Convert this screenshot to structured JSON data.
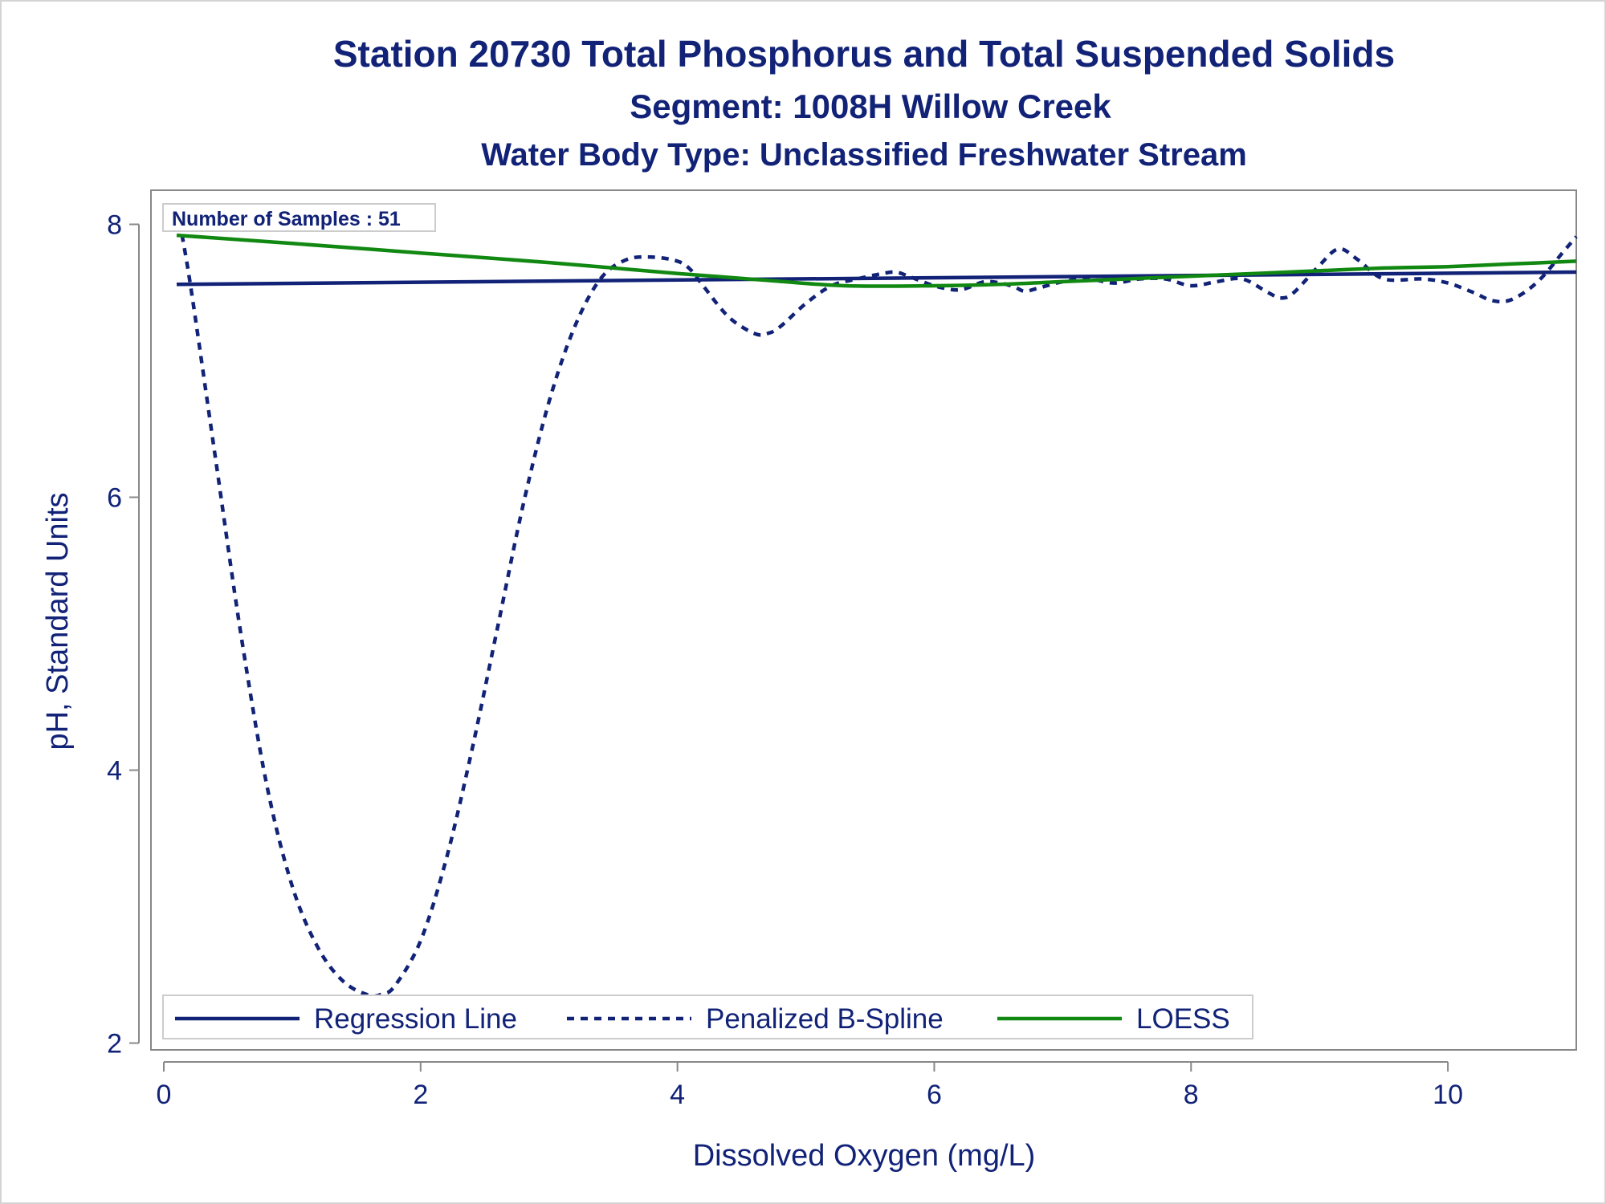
{
  "chart_data": {
    "type": "line",
    "title": "Station 20730  Total Phosphorus and Total Suspended Solids",
    "subtitle": "Segment: 1008H  Willow Creek",
    "subtitle2": "Water Body Type: Unclassified Freshwater Stream",
    "xlabel": "Dissolved Oxygen (mg/L)",
    "ylabel": "pH, Standard Units",
    "xlim": [
      -0.1,
      11.0
    ],
    "ylim": [
      1.95,
      8.25
    ],
    "xticks": [
      "0",
      "2",
      "4",
      "6",
      "8",
      "10"
    ],
    "yticks": [
      "2",
      "4",
      "6",
      "8"
    ],
    "grid": false,
    "legend_position": "bottom-inside",
    "inset_text": "Number of Samples : 51",
    "colors": {
      "navy": "#112277",
      "green": "#118811",
      "frame": "#888888"
    },
    "series": [
      {
        "name": "Regression Line",
        "style": "solid",
        "color": "#112277",
        "x": [
          0.1,
          11.0
        ],
        "y": [
          7.56,
          7.65
        ]
      },
      {
        "name": "Penalized B-Spline",
        "style": "dashed",
        "color": "#112277",
        "x": [
          0.1,
          0.2,
          0.4,
          0.6,
          0.8,
          1.0,
          1.2,
          1.4,
          1.6,
          1.7,
          1.8,
          2.0,
          2.2,
          2.4,
          2.6,
          2.8,
          3.0,
          3.2,
          3.4,
          3.6,
          3.8,
          4.0,
          4.1,
          4.2,
          4.4,
          4.6,
          4.7,
          4.8,
          5.0,
          5.2,
          5.4,
          5.6,
          5.7,
          5.8,
          6.0,
          6.2,
          6.4,
          6.6,
          6.7,
          6.8,
          7.0,
          7.2,
          7.4,
          7.6,
          7.8,
          8.0,
          8.2,
          8.4,
          8.6,
          8.7,
          8.8,
          9.0,
          9.15,
          9.3,
          9.5,
          9.8,
          10.0,
          10.2,
          10.35,
          10.5,
          10.7,
          10.9,
          11.0
        ],
        "y": [
          8.12,
          7.6,
          6.3,
          5.0,
          3.9,
          3.15,
          2.7,
          2.45,
          2.35,
          2.36,
          2.42,
          2.75,
          3.35,
          4.15,
          5.05,
          5.95,
          6.7,
          7.25,
          7.6,
          7.74,
          7.76,
          7.73,
          7.67,
          7.55,
          7.32,
          7.2,
          7.2,
          7.25,
          7.42,
          7.55,
          7.6,
          7.64,
          7.65,
          7.62,
          7.55,
          7.52,
          7.58,
          7.55,
          7.51,
          7.53,
          7.58,
          7.6,
          7.57,
          7.6,
          7.6,
          7.55,
          7.58,
          7.6,
          7.5,
          7.46,
          7.5,
          7.7,
          7.82,
          7.74,
          7.6,
          7.6,
          7.57,
          7.5,
          7.44,
          7.45,
          7.58,
          7.8,
          7.91
        ]
      },
      {
        "name": "LOESS",
        "style": "solid",
        "color": "#118811",
        "x": [
          0.1,
          1.0,
          2.0,
          3.0,
          4.0,
          4.7,
          5.3,
          6.0,
          6.5,
          7.0,
          7.5,
          8.0,
          8.5,
          9.0,
          9.5,
          10.0,
          10.5,
          11.0
        ],
        "y": [
          7.92,
          7.86,
          7.79,
          7.72,
          7.64,
          7.59,
          7.55,
          7.55,
          7.56,
          7.58,
          7.6,
          7.62,
          7.64,
          7.66,
          7.68,
          7.69,
          7.71,
          7.73
        ]
      }
    ]
  }
}
